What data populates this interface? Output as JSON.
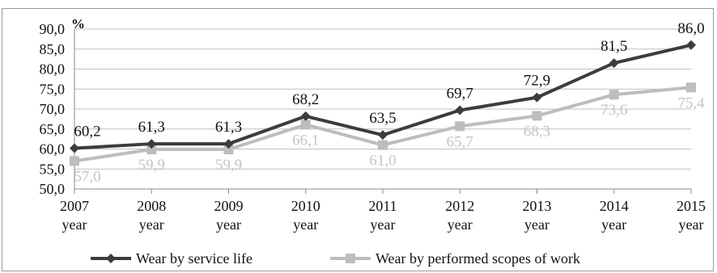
{
  "chart_data": {
    "type": "line",
    "x": [
      "2007",
      "2008",
      "2009",
      "2010",
      "2011",
      "2012",
      "2013",
      "2014",
      "2015"
    ],
    "x_tick_labels": [
      [
        "2007",
        "year"
      ],
      [
        "2008",
        "year"
      ],
      [
        "2009",
        "year"
      ],
      [
        "2010",
        "year"
      ],
      [
        "2011",
        "year"
      ],
      [
        "2012",
        "year"
      ],
      [
        "2013",
        "year"
      ],
      [
        "2014",
        "year"
      ],
      [
        "2015",
        "year"
      ]
    ],
    "y_unit_label": "%",
    "y_ticks": [
      "50,0",
      "55,0",
      "60,0",
      "65,0",
      "70,0",
      "75,0",
      "80,0",
      "85,0",
      "90,0"
    ],
    "ylim": [
      50,
      90
    ],
    "grid": true,
    "legend_position": "bottom",
    "series": [
      {
        "name": "Wear by service life",
        "values": [
          60.2,
          61.3,
          61.3,
          68.2,
          63.5,
          69.7,
          72.9,
          81.5,
          86.0
        ],
        "labels": [
          "60,2",
          "61,3",
          "61,3",
          "68,2",
          "63,5",
          "69,7",
          "72,9",
          "81,5",
          "86,0"
        ],
        "color": "#3c3c3c",
        "label_color": "#111111",
        "marker": "diamond"
      },
      {
        "name": "Wear by performed scopes of work",
        "values": [
          57.0,
          59.9,
          59.9,
          66.1,
          61.0,
          65.7,
          68.3,
          73.6,
          75.4
        ],
        "labels": [
          "57,0",
          "59,9",
          "59,9",
          "66,1",
          "61,0",
          "65,7",
          "68,3",
          "73,6",
          "75,4"
        ],
        "color": "#bdbdbd",
        "label_color": "#c4c4c4",
        "marker": "square"
      }
    ]
  }
}
